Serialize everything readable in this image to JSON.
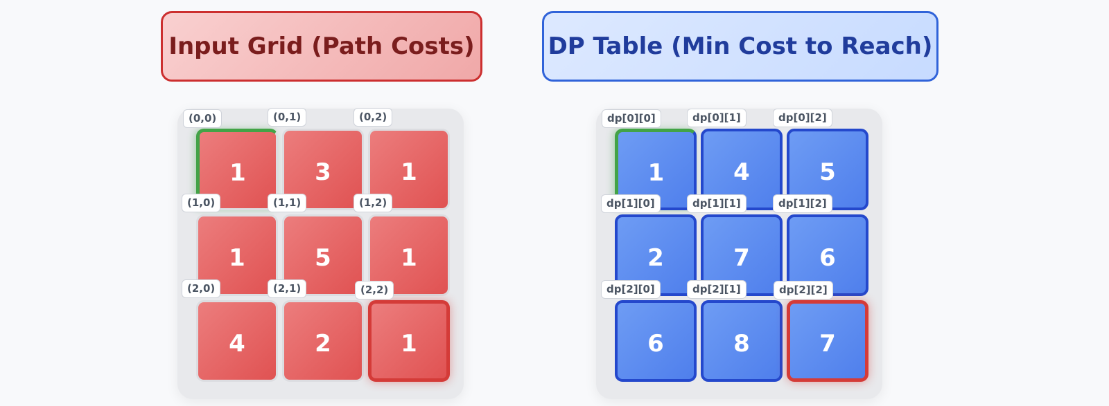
{
  "input_grid": {
    "title": "Input Grid (Path Costs)",
    "rows": [
      [
        {
          "label": "(0,0)",
          "value": "1"
        },
        {
          "label": "(0,1)",
          "value": "3"
        },
        {
          "label": "(0,2)",
          "value": "1"
        }
      ],
      [
        {
          "label": "(1,0)",
          "value": "1"
        },
        {
          "label": "(1,1)",
          "value": "5"
        },
        {
          "label": "(1,2)",
          "value": "1"
        }
      ],
      [
        {
          "label": "(2,0)",
          "value": "4"
        },
        {
          "label": "(2,1)",
          "value": "2"
        },
        {
          "label": "(2,2)",
          "value": "1"
        }
      ]
    ]
  },
  "dp_table": {
    "title": "DP Table (Min Cost to Reach)",
    "rows": [
      [
        {
          "label": "dp[0][0]",
          "value": "1"
        },
        {
          "label": "dp[0][1]",
          "value": "4"
        },
        {
          "label": "dp[0][2]",
          "value": "5"
        }
      ],
      [
        {
          "label": "dp[1][0]",
          "value": "2"
        },
        {
          "label": "dp[1][1]",
          "value": "7"
        },
        {
          "label": "dp[1][2]",
          "value": "6"
        }
      ],
      [
        {
          "label": "dp[2][0]",
          "value": "6"
        },
        {
          "label": "dp[2][1]",
          "value": "8"
        },
        {
          "label": "dp[2][2]",
          "value": "7"
        }
      ]
    ]
  },
  "colors": {
    "input_cell": "#e05252",
    "dp_cell": "#4f7fec",
    "start_highlight": "#43a347",
    "goal_highlight": "#d43b38"
  }
}
